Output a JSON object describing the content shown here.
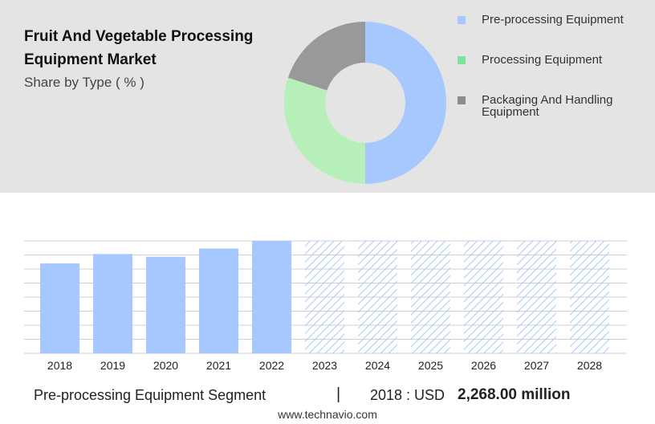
{
  "header": {
    "title": "Fruit And Vegetable Processing Equipment Market",
    "subtitle": "Share by Type ( % )"
  },
  "legend": {
    "items": [
      {
        "label": "Pre-processing Equipment",
        "color": "#a6c8ff"
      },
      {
        "label": "Processing Equipment",
        "color": "#7ee39a"
      },
      {
        "label": "Packaging And Handling Equipment",
        "color": "#8c8c8c"
      }
    ]
  },
  "footer": {
    "segment": "Pre-processing Equipment Segment",
    "separator": "|",
    "year_label": "2018 : USD",
    "value": "2,268.00 million"
  },
  "source": "www.technavio.com",
  "chart_data": [
    {
      "type": "pie",
      "style": "donut",
      "categories": [
        "Pre-processing Equipment",
        "Processing Equipment",
        "Packaging And Handling Equipment"
      ],
      "values": [
        50,
        30,
        20
      ],
      "colors": [
        "#a6c8ff",
        "#b6f0b8",
        "#999999"
      ]
    },
    {
      "type": "bar",
      "categories": [
        "2018",
        "2019",
        "2020",
        "2021",
        "2022",
        "2023",
        "2024",
        "2025",
        "2026",
        "2027",
        "2028"
      ],
      "values": [
        2268,
        2507,
        2437,
        2646,
        2837,
        null,
        null,
        null,
        null,
        null,
        null
      ],
      "forecast": [
        false,
        false,
        false,
        false,
        false,
        true,
        true,
        true,
        true,
        true,
        true
      ],
      "ylim": [
        0,
        2837
      ],
      "grid": true,
      "colors": {
        "actual": "#a6c8ff",
        "forecast_hatch": "#a6c8ff"
      }
    }
  ]
}
